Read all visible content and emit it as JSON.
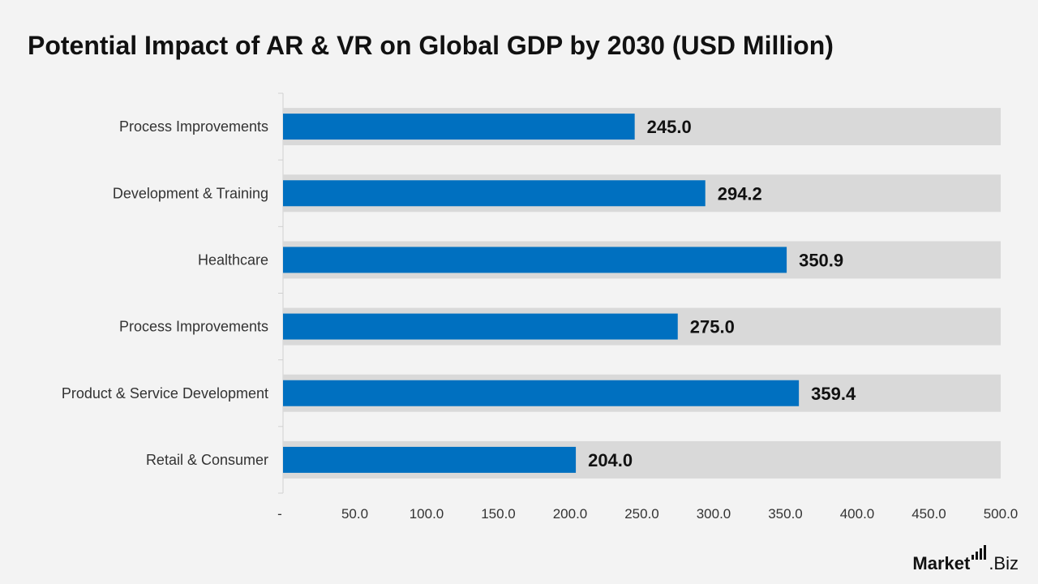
{
  "chart_data": {
    "type": "bar",
    "orientation": "horizontal",
    "title": "Potential Impact of AR & VR on Global GDP by 2030 (USD Million)",
    "categories": [
      "Process Improvements",
      "Development & Training",
      "Healthcare",
      "Process Improvements",
      "Product & Service Development",
      "Retail & Consumer"
    ],
    "values": [
      245.0,
      294.2,
      350.9,
      275.0,
      359.4,
      204.0
    ],
    "value_labels": [
      "245.0",
      "294.2",
      "350.9",
      "275.0",
      "359.4",
      "204.0"
    ],
    "xlim": [
      0,
      500
    ],
    "x_ticks": [
      "-",
      "50.0",
      "100.0",
      "150.0",
      "200.0",
      "250.0",
      "300.0",
      "350.0",
      "400.0",
      "450.0",
      "500.0"
    ],
    "x_tick_values": [
      0,
      50,
      100,
      150,
      200,
      250,
      300,
      350,
      400,
      450,
      500
    ],
    "background_max": 500,
    "colors": {
      "bar": "#0070c0",
      "background_bar": "#d9d9d9",
      "axis": "#d0d0d0"
    },
    "grid": false,
    "legend": "none"
  },
  "branding": {
    "logo_text_main": "Market",
    "logo_text_suffix": ".Biz",
    "icon": "bar-signal-icon"
  }
}
